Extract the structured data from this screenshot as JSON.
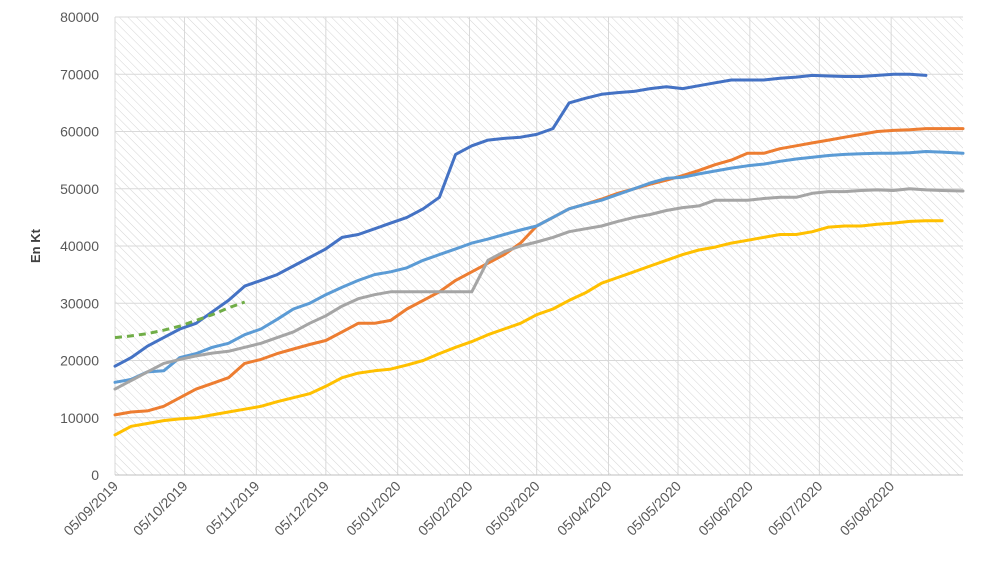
{
  "chart_data": {
    "type": "line",
    "ylabel": "En Kt",
    "ylim": [
      0,
      80000
    ],
    "yticks": [
      "0",
      "10000",
      "20000",
      "30000",
      "40000",
      "50000",
      "60000",
      "70000",
      "80000"
    ],
    "xlim": [
      "2019-09-05",
      "2020-09-05"
    ],
    "xticks": [
      "05/09/2019",
      "05/10/2019",
      "05/11/2019",
      "05/12/2019",
      "05/01/2020",
      "05/02/2020",
      "05/03/2020",
      "05/04/2020",
      "05/05/2020",
      "05/06/2020",
      "05/07/2020",
      "05/08/2020"
    ],
    "grid": true,
    "legend": "none",
    "series": [
      {
        "color": "#4472C4",
        "style": "solid",
        "points": [
          [
            "2019-09-05",
            19000
          ],
          [
            "2019-09-12",
            20500
          ],
          [
            "2019-09-19",
            22500
          ],
          [
            "2019-09-26",
            24000
          ],
          [
            "2019-10-03",
            25500
          ],
          [
            "2019-10-10",
            26500
          ],
          [
            "2019-10-17",
            28500
          ],
          [
            "2019-10-24",
            30500
          ],
          [
            "2019-10-31",
            33000
          ],
          [
            "2019-11-07",
            34000
          ],
          [
            "2019-11-14",
            35000
          ],
          [
            "2019-11-21",
            36500
          ],
          [
            "2019-11-28",
            38000
          ],
          [
            "2019-12-05",
            39500
          ],
          [
            "2019-12-12",
            41500
          ],
          [
            "2019-12-19",
            42000
          ],
          [
            "2019-12-26",
            43000
          ],
          [
            "2020-01-02",
            44000
          ],
          [
            "2020-01-09",
            45000
          ],
          [
            "2020-01-16",
            46500
          ],
          [
            "2020-01-23",
            48500
          ],
          [
            "2020-01-30",
            56000
          ],
          [
            "2020-02-06",
            57500
          ],
          [
            "2020-02-13",
            58500
          ],
          [
            "2020-02-20",
            58800
          ],
          [
            "2020-02-27",
            59000
          ],
          [
            "2020-03-05",
            59500
          ],
          [
            "2020-03-12",
            60500
          ],
          [
            "2020-03-19",
            65000
          ],
          [
            "2020-03-26",
            65800
          ],
          [
            "2020-04-02",
            66500
          ],
          [
            "2020-04-09",
            66800
          ],
          [
            "2020-04-16",
            67000
          ],
          [
            "2020-04-23",
            67500
          ],
          [
            "2020-04-30",
            67800
          ],
          [
            "2020-05-07",
            67500
          ],
          [
            "2020-05-14",
            68000
          ],
          [
            "2020-05-21",
            68500
          ],
          [
            "2020-05-28",
            69000
          ],
          [
            "2020-06-04",
            69000
          ],
          [
            "2020-06-11",
            69000
          ],
          [
            "2020-06-18",
            69300
          ],
          [
            "2020-06-25",
            69500
          ],
          [
            "2020-07-02",
            69800
          ],
          [
            "2020-07-09",
            69700
          ],
          [
            "2020-07-16",
            69600
          ],
          [
            "2020-07-23",
            69600
          ],
          [
            "2020-07-30",
            69800
          ],
          [
            "2020-08-06",
            70000
          ],
          [
            "2020-08-13",
            70000
          ],
          [
            "2020-08-20",
            69800
          ]
        ]
      },
      {
        "color": "#ED7D31",
        "style": "solid",
        "points": [
          [
            "2019-09-05",
            10500
          ],
          [
            "2019-09-12",
            11000
          ],
          [
            "2019-09-19",
            11200
          ],
          [
            "2019-09-26",
            12000
          ],
          [
            "2019-10-03",
            13500
          ],
          [
            "2019-10-10",
            15000
          ],
          [
            "2019-10-17",
            16000
          ],
          [
            "2019-10-24",
            17000
          ],
          [
            "2019-10-31",
            19500
          ],
          [
            "2019-11-07",
            20200
          ],
          [
            "2019-11-14",
            21200
          ],
          [
            "2019-11-21",
            22000
          ],
          [
            "2019-11-28",
            22800
          ],
          [
            "2019-12-05",
            23500
          ],
          [
            "2019-12-12",
            25000
          ],
          [
            "2019-12-19",
            26500
          ],
          [
            "2019-12-26",
            26500
          ],
          [
            "2020-01-02",
            27000
          ],
          [
            "2020-01-09",
            29000
          ],
          [
            "2020-01-16",
            30500
          ],
          [
            "2020-01-23",
            32000
          ],
          [
            "2020-01-30",
            34000
          ],
          [
            "2020-02-06",
            35500
          ],
          [
            "2020-02-13",
            37000
          ],
          [
            "2020-02-20",
            38500
          ],
          [
            "2020-02-27",
            40500
          ],
          [
            "2020-03-05",
            43500
          ],
          [
            "2020-03-12",
            45000
          ],
          [
            "2020-03-19",
            46500
          ],
          [
            "2020-03-26",
            47300
          ],
          [
            "2020-04-02",
            48200
          ],
          [
            "2020-04-09",
            49200
          ],
          [
            "2020-04-16",
            50000
          ],
          [
            "2020-04-23",
            50800
          ],
          [
            "2020-04-30",
            51500
          ],
          [
            "2020-05-07",
            52300
          ],
          [
            "2020-05-14",
            53200
          ],
          [
            "2020-05-21",
            54200
          ],
          [
            "2020-05-28",
            55000
          ],
          [
            "2020-06-04",
            56200
          ],
          [
            "2020-06-11",
            56200
          ],
          [
            "2020-06-18",
            57000
          ],
          [
            "2020-06-25",
            57500
          ],
          [
            "2020-07-02",
            58000
          ],
          [
            "2020-07-09",
            58500
          ],
          [
            "2020-07-16",
            59000
          ],
          [
            "2020-07-23",
            59500
          ],
          [
            "2020-07-30",
            60000
          ],
          [
            "2020-08-06",
            60200
          ],
          [
            "2020-08-13",
            60300
          ],
          [
            "2020-08-20",
            60500
          ],
          [
            "2020-08-27",
            60500
          ],
          [
            "2020-09-05",
            60500
          ]
        ]
      },
      {
        "color": "#5B9BD5",
        "style": "solid",
        "points": [
          [
            "2019-09-05",
            16200
          ],
          [
            "2019-09-12",
            16700
          ],
          [
            "2019-09-19",
            18000
          ],
          [
            "2019-09-26",
            18200
          ],
          [
            "2019-10-03",
            20500
          ],
          [
            "2019-10-10",
            21200
          ],
          [
            "2019-10-17",
            22300
          ],
          [
            "2019-10-24",
            23000
          ],
          [
            "2019-10-31",
            24500
          ],
          [
            "2019-11-07",
            25500
          ],
          [
            "2019-11-14",
            27200
          ],
          [
            "2019-11-21",
            29000
          ],
          [
            "2019-11-28",
            30000
          ],
          [
            "2019-12-05",
            31500
          ],
          [
            "2019-12-12",
            32800
          ],
          [
            "2019-12-19",
            34000
          ],
          [
            "2019-12-26",
            35000
          ],
          [
            "2020-01-02",
            35500
          ],
          [
            "2020-01-09",
            36200
          ],
          [
            "2020-01-16",
            37500
          ],
          [
            "2020-01-23",
            38500
          ],
          [
            "2020-01-30",
            39500
          ],
          [
            "2020-02-06",
            40500
          ],
          [
            "2020-02-13",
            41200
          ],
          [
            "2020-02-20",
            42000
          ],
          [
            "2020-02-27",
            42800
          ],
          [
            "2020-03-05",
            43500
          ],
          [
            "2020-03-12",
            45000
          ],
          [
            "2020-03-19",
            46500
          ],
          [
            "2020-03-26",
            47300
          ],
          [
            "2020-04-02",
            48000
          ],
          [
            "2020-04-09",
            49000
          ],
          [
            "2020-04-16",
            50000
          ],
          [
            "2020-04-23",
            51000
          ],
          [
            "2020-04-30",
            51800
          ],
          [
            "2020-05-07",
            52000
          ],
          [
            "2020-05-14",
            52600
          ],
          [
            "2020-05-21",
            53100
          ],
          [
            "2020-05-28",
            53600
          ],
          [
            "2020-06-04",
            54000
          ],
          [
            "2020-06-11",
            54300
          ],
          [
            "2020-06-18",
            54800
          ],
          [
            "2020-06-25",
            55200
          ],
          [
            "2020-07-02",
            55500
          ],
          [
            "2020-07-09",
            55800
          ],
          [
            "2020-07-16",
            56000
          ],
          [
            "2020-07-23",
            56100
          ],
          [
            "2020-07-30",
            56200
          ],
          [
            "2020-08-06",
            56200
          ],
          [
            "2020-08-13",
            56300
          ],
          [
            "2020-08-20",
            56500
          ],
          [
            "2020-08-27",
            56400
          ],
          [
            "2020-09-05",
            56200
          ]
        ]
      },
      {
        "color": "#A5A5A5",
        "style": "solid",
        "points": [
          [
            "2019-09-05",
            15000
          ],
          [
            "2019-09-12",
            16500
          ],
          [
            "2019-09-19",
            18000
          ],
          [
            "2019-09-26",
            19500
          ],
          [
            "2019-10-03",
            20200
          ],
          [
            "2019-10-10",
            20800
          ],
          [
            "2019-10-17",
            21300
          ],
          [
            "2019-10-24",
            21600
          ],
          [
            "2019-10-31",
            22300
          ],
          [
            "2019-11-07",
            23000
          ],
          [
            "2019-11-14",
            24000
          ],
          [
            "2019-11-21",
            25000
          ],
          [
            "2019-11-28",
            26500
          ],
          [
            "2019-12-05",
            27800
          ],
          [
            "2019-12-12",
            29500
          ],
          [
            "2019-12-19",
            30800
          ],
          [
            "2019-12-26",
            31500
          ],
          [
            "2020-01-02",
            32000
          ],
          [
            "2020-01-09",
            32000
          ],
          [
            "2020-01-16",
            32000
          ],
          [
            "2020-01-23",
            32000
          ],
          [
            "2020-01-30",
            32000
          ],
          [
            "2020-02-06",
            32000
          ],
          [
            "2020-02-13",
            37500
          ],
          [
            "2020-02-20",
            39000
          ],
          [
            "2020-02-27",
            40000
          ],
          [
            "2020-03-05",
            40700
          ],
          [
            "2020-03-12",
            41500
          ],
          [
            "2020-03-19",
            42500
          ],
          [
            "2020-03-26",
            43000
          ],
          [
            "2020-04-02",
            43500
          ],
          [
            "2020-04-09",
            44300
          ],
          [
            "2020-04-16",
            45000
          ],
          [
            "2020-04-23",
            45500
          ],
          [
            "2020-04-30",
            46200
          ],
          [
            "2020-05-07",
            46700
          ],
          [
            "2020-05-14",
            47000
          ],
          [
            "2020-05-21",
            48000
          ],
          [
            "2020-05-28",
            48000
          ],
          [
            "2020-06-04",
            48000
          ],
          [
            "2020-06-11",
            48300
          ],
          [
            "2020-06-18",
            48500
          ],
          [
            "2020-06-25",
            48500
          ],
          [
            "2020-07-02",
            49200
          ],
          [
            "2020-07-09",
            49500
          ],
          [
            "2020-07-16",
            49500
          ],
          [
            "2020-07-23",
            49700
          ],
          [
            "2020-07-30",
            49800
          ],
          [
            "2020-08-06",
            49700
          ],
          [
            "2020-08-13",
            50000
          ],
          [
            "2020-08-20",
            49800
          ],
          [
            "2020-08-27",
            49700
          ],
          [
            "2020-09-05",
            49600
          ]
        ]
      },
      {
        "color": "#FFC000",
        "style": "solid",
        "points": [
          [
            "2019-09-05",
            7000
          ],
          [
            "2019-09-12",
            8500
          ],
          [
            "2019-09-19",
            9000
          ],
          [
            "2019-09-26",
            9500
          ],
          [
            "2019-10-03",
            9800
          ],
          [
            "2019-10-10",
            10000
          ],
          [
            "2019-10-17",
            10500
          ],
          [
            "2019-10-24",
            11000
          ],
          [
            "2019-10-31",
            11500
          ],
          [
            "2019-11-07",
            12000
          ],
          [
            "2019-11-14",
            12800
          ],
          [
            "2019-11-21",
            13500
          ],
          [
            "2019-11-28",
            14200
          ],
          [
            "2019-12-05",
            15500
          ],
          [
            "2019-12-12",
            17000
          ],
          [
            "2019-12-19",
            17800
          ],
          [
            "2019-12-26",
            18200
          ],
          [
            "2020-01-02",
            18500
          ],
          [
            "2020-01-09",
            19200
          ],
          [
            "2020-01-16",
            20000
          ],
          [
            "2020-01-23",
            21200
          ],
          [
            "2020-01-30",
            22300
          ],
          [
            "2020-02-06",
            23300
          ],
          [
            "2020-02-13",
            24500
          ],
          [
            "2020-02-20",
            25500
          ],
          [
            "2020-02-27",
            26500
          ],
          [
            "2020-03-05",
            28000
          ],
          [
            "2020-03-12",
            29000
          ],
          [
            "2020-03-19",
            30500
          ],
          [
            "2020-03-26",
            31800
          ],
          [
            "2020-04-02",
            33500
          ],
          [
            "2020-04-09",
            34500
          ],
          [
            "2020-04-16",
            35500
          ],
          [
            "2020-04-23",
            36500
          ],
          [
            "2020-04-30",
            37500
          ],
          [
            "2020-05-07",
            38500
          ],
          [
            "2020-05-14",
            39300
          ],
          [
            "2020-05-21",
            39800
          ],
          [
            "2020-05-28",
            40500
          ],
          [
            "2020-06-04",
            41000
          ],
          [
            "2020-06-11",
            41500
          ],
          [
            "2020-06-18",
            42000
          ],
          [
            "2020-06-25",
            42000
          ],
          [
            "2020-07-02",
            42500
          ],
          [
            "2020-07-09",
            43300
          ],
          [
            "2020-07-16",
            43500
          ],
          [
            "2020-07-23",
            43500
          ],
          [
            "2020-07-30",
            43800
          ],
          [
            "2020-08-06",
            44000
          ],
          [
            "2020-08-13",
            44300
          ],
          [
            "2020-08-20",
            44400
          ],
          [
            "2020-08-27",
            44400
          ]
        ]
      },
      {
        "color": "#70AD47",
        "style": "dashed",
        "points": [
          [
            "2019-09-05",
            24000
          ],
          [
            "2019-09-12",
            24300
          ],
          [
            "2019-09-19",
            24700
          ],
          [
            "2019-09-26",
            25300
          ],
          [
            "2019-10-03",
            26000
          ],
          [
            "2019-10-10",
            27000
          ],
          [
            "2019-10-17",
            28000
          ],
          [
            "2019-10-24",
            29200
          ],
          [
            "2019-10-31",
            30200
          ]
        ]
      }
    ]
  }
}
